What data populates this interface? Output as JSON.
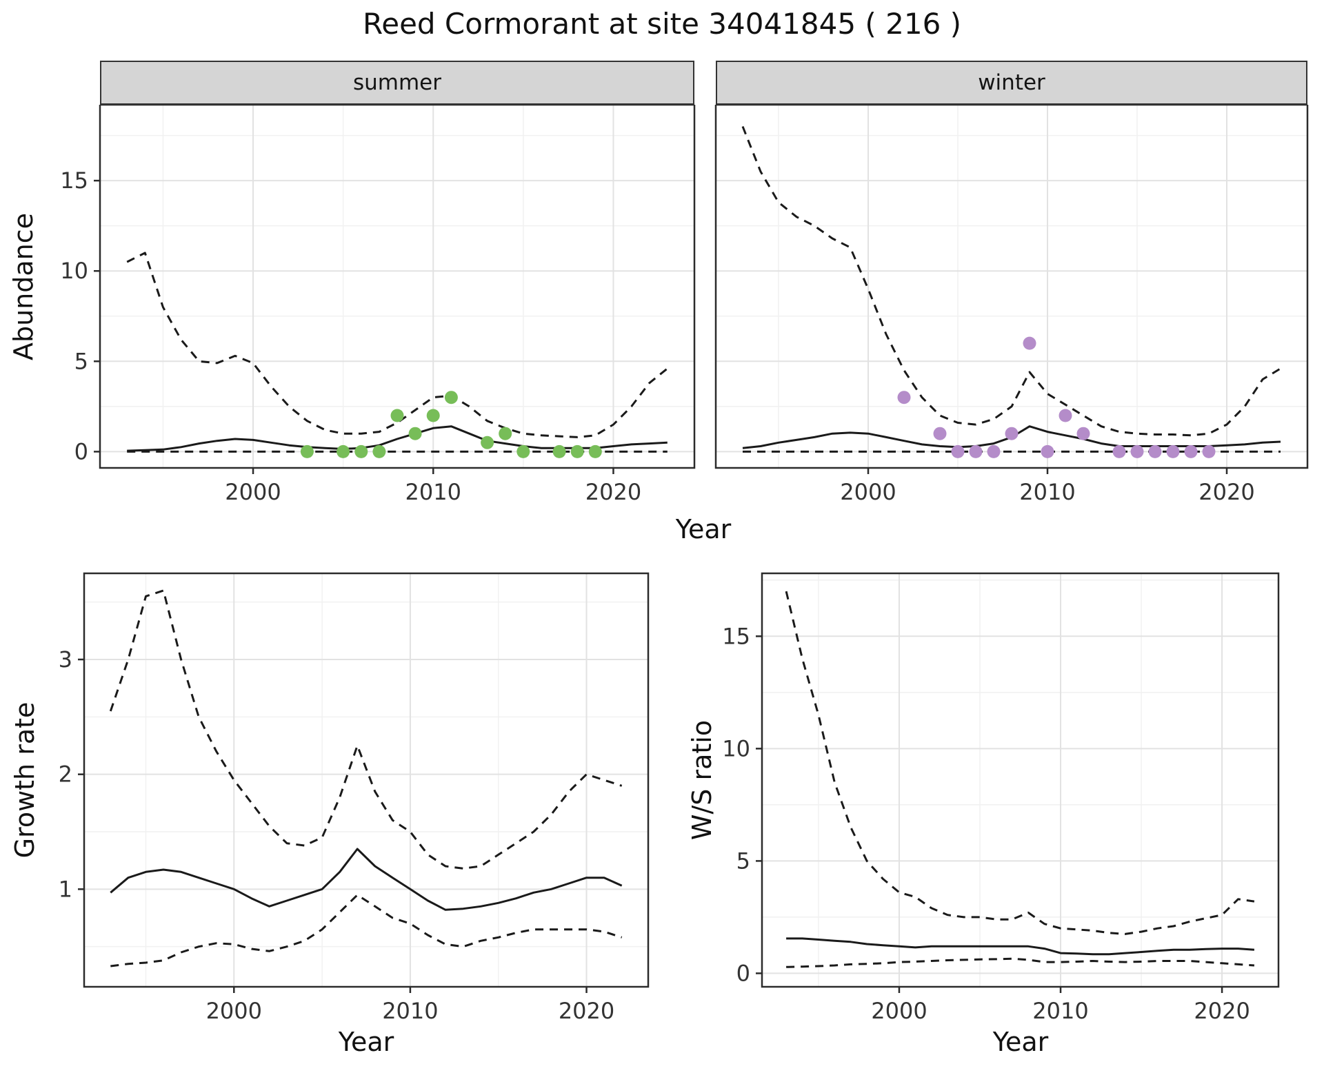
{
  "title": "Reed Cormorant at site 34041845 ( 216 )",
  "axes": {
    "abundance_label": "Abundance",
    "year_label_top": "Year",
    "year_label_growth": "Year",
    "year_label_ratio": "Year",
    "growth_label": "Growth rate",
    "ratio_label": "W/S ratio"
  },
  "colors": {
    "line": "#1a1a1a",
    "grid_major": "#e2e2e2",
    "grid_minor": "#f1f1f1",
    "panel_border": "#2b2b2b",
    "strip_bg": "#d5d5d5",
    "summer_points": "#77bd58",
    "winter_points": "#b48cc9"
  },
  "chart_data": [
    {
      "id": "abundance_summer",
      "type": "line",
      "facet": "summer",
      "xlabel": "Year",
      "ylabel": "Abundance",
      "xlim": [
        1991.5,
        2024.5
      ],
      "ylim": [
        -0.9,
        19.2
      ],
      "xticks": [
        2000,
        2010,
        2020
      ],
      "xticks_minor": [
        1995,
        2005,
        2015
      ],
      "yticks": [
        0,
        5,
        10,
        15
      ],
      "yticks_minor": [
        2.5,
        7.5,
        12.5,
        17.5
      ],
      "series": [
        {
          "name": "upper_ci",
          "style": "dashed",
          "x": [
            1993,
            1994,
            1995,
            1996,
            1997,
            1998,
            1999,
            2000,
            2001,
            2002,
            2003,
            2004,
            2005,
            2006,
            2007,
            2008,
            2009,
            2010,
            2011,
            2012,
            2013,
            2014,
            2015,
            2016,
            2017,
            2018,
            2019,
            2020,
            2021,
            2022,
            2023
          ],
          "y": [
            10.5,
            11,
            8,
            6.2,
            5,
            4.9,
            5.3,
            4.9,
            3.6,
            2.5,
            1.7,
            1.2,
            1,
            1,
            1.1,
            1.6,
            2.3,
            3,
            3.1,
            2.5,
            1.7,
            1.3,
            1,
            0.9,
            0.85,
            0.8,
            0.9,
            1.5,
            2.5,
            3.8,
            4.6
          ]
        },
        {
          "name": "mean",
          "style": "solid",
          "x": [
            1993,
            1994,
            1995,
            1996,
            1997,
            1998,
            1999,
            2000,
            2001,
            2002,
            2003,
            2004,
            2005,
            2006,
            2007,
            2008,
            2009,
            2010,
            2011,
            2012,
            2013,
            2014,
            2015,
            2016,
            2017,
            2018,
            2019,
            2020,
            2021,
            2022,
            2023
          ],
          "y": [
            0.05,
            0.08,
            0.12,
            0.25,
            0.45,
            0.6,
            0.7,
            0.65,
            0.5,
            0.35,
            0.25,
            0.2,
            0.15,
            0.2,
            0.35,
            0.7,
            1,
            1.3,
            1.4,
            1,
            0.6,
            0.45,
            0.3,
            0.2,
            0.2,
            0.2,
            0.2,
            0.3,
            0.4,
            0.45,
            0.5
          ]
        },
        {
          "name": "lower_ci",
          "style": "dashed",
          "x": [
            1993,
            1994,
            1995,
            1996,
            1997,
            1998,
            1999,
            2000,
            2001,
            2002,
            2003,
            2004,
            2005,
            2006,
            2007,
            2008,
            2009,
            2010,
            2011,
            2012,
            2013,
            2014,
            2015,
            2016,
            2017,
            2018,
            2019,
            2020,
            2021,
            2022,
            2023
          ],
          "y": [
            0,
            0,
            0,
            0,
            0,
            0,
            0,
            0,
            0,
            0,
            0,
            0,
            0,
            0,
            0,
            0,
            0,
            0,
            0,
            0,
            0,
            0,
            0,
            0,
            0,
            0,
            0,
            0,
            0,
            0,
            0
          ]
        }
      ],
      "points": {
        "name": "observed_counts_summer",
        "color": "#77bd58",
        "x": [
          2003,
          2005,
          2006,
          2007,
          2008,
          2009,
          2010,
          2011,
          2013,
          2014,
          2015,
          2017,
          2018,
          2019
        ],
        "y": [
          0,
          0,
          0,
          0,
          2,
          1,
          2,
          3,
          0.5,
          1,
          0,
          0,
          0,
          0
        ]
      }
    },
    {
      "id": "abundance_winter",
      "type": "line",
      "facet": "winter",
      "xlabel": "Year",
      "ylabel": "Abundance",
      "xlim": [
        1991.5,
        2024.5
      ],
      "ylim": [
        -0.9,
        19.2
      ],
      "xticks": [
        2000,
        2010,
        2020
      ],
      "xticks_minor": [
        1995,
        2005,
        2015
      ],
      "yticks": [
        0,
        5,
        10,
        15
      ],
      "yticks_minor": [
        2.5,
        7.5,
        12.5,
        17.5
      ],
      "series": [
        {
          "name": "upper_ci",
          "style": "dashed",
          "x": [
            1993,
            1994,
            1995,
            1996,
            1997,
            1998,
            1999,
            2000,
            2001,
            2002,
            2003,
            2004,
            2005,
            2006,
            2007,
            2008,
            2009,
            2010,
            2011,
            2012,
            2013,
            2014,
            2015,
            2016,
            2017,
            2018,
            2019,
            2020,
            2021,
            2022,
            2023
          ],
          "y": [
            18,
            15.5,
            13.8,
            13,
            12.5,
            11.8,
            11.3,
            9,
            6.5,
            4.5,
            3,
            2,
            1.6,
            1.5,
            1.8,
            2.5,
            4.4,
            3.2,
            2.6,
            2,
            1.4,
            1.1,
            1,
            0.95,
            0.95,
            0.9,
            1,
            1.5,
            2.5,
            4,
            4.6
          ]
        },
        {
          "name": "mean",
          "style": "solid",
          "x": [
            1993,
            1994,
            1995,
            1996,
            1997,
            1998,
            1999,
            2000,
            2001,
            2002,
            2003,
            2004,
            2005,
            2006,
            2007,
            2008,
            2009,
            2010,
            2011,
            2012,
            2013,
            2014,
            2015,
            2016,
            2017,
            2018,
            2019,
            2020,
            2021,
            2022,
            2023
          ],
          "y": [
            0.2,
            0.3,
            0.5,
            0.65,
            0.8,
            1,
            1.05,
            1,
            0.8,
            0.6,
            0.4,
            0.3,
            0.25,
            0.3,
            0.45,
            0.8,
            1.4,
            1.1,
            0.9,
            0.7,
            0.45,
            0.3,
            0.3,
            0.3,
            0.3,
            0.3,
            0.3,
            0.35,
            0.4,
            0.5,
            0.55
          ]
        },
        {
          "name": "lower_ci",
          "style": "dashed",
          "x": [
            1993,
            1994,
            1995,
            1996,
            1997,
            1998,
            1999,
            2000,
            2001,
            2002,
            2003,
            2004,
            2005,
            2006,
            2007,
            2008,
            2009,
            2010,
            2011,
            2012,
            2013,
            2014,
            2015,
            2016,
            2017,
            2018,
            2019,
            2020,
            2021,
            2022,
            2023
          ],
          "y": [
            0,
            0,
            0,
            0,
            0,
            0,
            0,
            0,
            0,
            0,
            0,
            0,
            0,
            0,
            0,
            0,
            0,
            0,
            0,
            0,
            0,
            0,
            0,
            0,
            0,
            0,
            0,
            0,
            0,
            0,
            0
          ]
        }
      ],
      "points": {
        "name": "observed_counts_winter",
        "color": "#b48cc9",
        "x": [
          2002,
          2004,
          2005,
          2006,
          2007,
          2008,
          2009,
          2010,
          2011,
          2012,
          2014,
          2015,
          2016,
          2017,
          2018,
          2019
        ],
        "y": [
          3,
          1,
          0,
          0,
          0,
          1,
          6,
          0,
          2,
          1,
          0,
          0,
          0,
          0,
          0,
          0
        ]
      }
    },
    {
      "id": "growth_rate",
      "type": "line",
      "facet": "",
      "xlabel": "Year",
      "ylabel": "Growth rate",
      "xlim": [
        1991.5,
        2023.5
      ],
      "ylim": [
        0.15,
        3.75
      ],
      "xticks": [
        2000,
        2010,
        2020
      ],
      "xticks_minor": [
        1995,
        2005,
        2015
      ],
      "yticks": [
        1,
        2,
        3
      ],
      "yticks_minor": [
        0.5,
        1.5,
        2.5,
        3.5
      ],
      "series": [
        {
          "name": "upper_ci",
          "style": "dashed",
          "x": [
            1993,
            1994,
            1995,
            1996,
            1997,
            1998,
            1999,
            2000,
            2001,
            2002,
            2003,
            2004,
            2005,
            2006,
            2007,
            2008,
            2009,
            2010,
            2011,
            2012,
            2013,
            2014,
            2015,
            2016,
            2017,
            2018,
            2019,
            2020,
            2021,
            2022
          ],
          "y": [
            2.55,
            3,
            3.55,
            3.6,
            3,
            2.5,
            2.2,
            1.95,
            1.75,
            1.55,
            1.4,
            1.38,
            1.45,
            1.8,
            2.25,
            1.85,
            1.6,
            1.5,
            1.3,
            1.2,
            1.18,
            1.2,
            1.3,
            1.4,
            1.5,
            1.65,
            1.85,
            2,
            1.95,
            1.9
          ]
        },
        {
          "name": "mean",
          "style": "solid",
          "x": [
            1993,
            1994,
            1995,
            1996,
            1997,
            1998,
            1999,
            2000,
            2001,
            2002,
            2003,
            2004,
            2005,
            2006,
            2007,
            2008,
            2009,
            2010,
            2011,
            2012,
            2013,
            2014,
            2015,
            2016,
            2017,
            2018,
            2019,
            2020,
            2021,
            2022
          ],
          "y": [
            0.97,
            1.1,
            1.15,
            1.17,
            1.15,
            1.1,
            1.05,
            1,
            0.92,
            0.85,
            0.9,
            0.95,
            1,
            1.15,
            1.35,
            1.2,
            1.1,
            1,
            0.9,
            0.82,
            0.83,
            0.85,
            0.88,
            0.92,
            0.97,
            1,
            1.05,
            1.1,
            1.1,
            1.03
          ]
        },
        {
          "name": "lower_ci",
          "style": "dashed",
          "x": [
            1993,
            1994,
            1995,
            1996,
            1997,
            1998,
            1999,
            2000,
            2001,
            2002,
            2003,
            2004,
            2005,
            2006,
            2007,
            2008,
            2009,
            2010,
            2011,
            2012,
            2013,
            2014,
            2015,
            2016,
            2017,
            2018,
            2019,
            2020,
            2021,
            2022
          ],
          "y": [
            0.33,
            0.35,
            0.36,
            0.38,
            0.45,
            0.5,
            0.53,
            0.52,
            0.48,
            0.46,
            0.5,
            0.55,
            0.65,
            0.8,
            0.95,
            0.85,
            0.75,
            0.7,
            0.6,
            0.52,
            0.5,
            0.55,
            0.58,
            0.62,
            0.65,
            0.65,
            0.65,
            0.65,
            0.63,
            0.58
          ]
        }
      ]
    },
    {
      "id": "ws_ratio",
      "type": "line",
      "facet": "",
      "xlabel": "Year",
      "ylabel": "W/S ratio",
      "xlim": [
        1991.5,
        2023.5
      ],
      "ylim": [
        -0.6,
        17.8
      ],
      "xticks": [
        2000,
        2010,
        2020
      ],
      "xticks_minor": [
        1995,
        2005,
        2015
      ],
      "yticks": [
        0,
        5,
        10,
        15
      ],
      "yticks_minor": [
        2.5,
        7.5,
        12.5,
        17.5
      ],
      "series": [
        {
          "name": "upper_ci",
          "style": "dashed",
          "x": [
            1993,
            1994,
            1995,
            1996,
            1997,
            1998,
            1999,
            2000,
            2001,
            2002,
            2003,
            2004,
            2005,
            2006,
            2007,
            2008,
            2009,
            2010,
            2011,
            2012,
            2013,
            2014,
            2015,
            2016,
            2017,
            2018,
            2019,
            2020,
            2021,
            2022
          ],
          "y": [
            17,
            14,
            11.5,
            8.5,
            6.5,
            5,
            4.2,
            3.6,
            3.4,
            2.9,
            2.6,
            2.5,
            2.5,
            2.4,
            2.4,
            2.7,
            2.2,
            2,
            1.95,
            1.9,
            1.8,
            1.75,
            1.85,
            2,
            2.1,
            2.3,
            2.45,
            2.6,
            3.3,
            3.2
          ]
        },
        {
          "name": "mean",
          "style": "solid",
          "x": [
            1993,
            1994,
            1995,
            1996,
            1997,
            1998,
            1999,
            2000,
            2001,
            2002,
            2003,
            2004,
            2005,
            2006,
            2007,
            2008,
            2009,
            2010,
            2011,
            2012,
            2013,
            2014,
            2015,
            2016,
            2017,
            2018,
            2019,
            2020,
            2021,
            2022
          ],
          "y": [
            1.55,
            1.55,
            1.5,
            1.45,
            1.4,
            1.3,
            1.25,
            1.2,
            1.15,
            1.2,
            1.2,
            1.2,
            1.2,
            1.2,
            1.2,
            1.2,
            1.1,
            0.9,
            0.88,
            0.85,
            0.85,
            0.9,
            0.95,
            1,
            1.05,
            1.05,
            1.08,
            1.1,
            1.1,
            1.05
          ]
        },
        {
          "name": "lower_ci",
          "style": "dashed",
          "x": [
            1993,
            1994,
            1995,
            1996,
            1997,
            1998,
            1999,
            2000,
            2001,
            2002,
            2003,
            2004,
            2005,
            2006,
            2007,
            2008,
            2009,
            2010,
            2011,
            2012,
            2013,
            2014,
            2015,
            2016,
            2017,
            2018,
            2019,
            2020,
            2021,
            2022
          ],
          "y": [
            0.28,
            0.3,
            0.32,
            0.35,
            0.4,
            0.42,
            0.45,
            0.5,
            0.52,
            0.55,
            0.58,
            0.6,
            0.62,
            0.63,
            0.65,
            0.6,
            0.5,
            0.5,
            0.52,
            0.55,
            0.52,
            0.5,
            0.52,
            0.55,
            0.55,
            0.55,
            0.5,
            0.45,
            0.4,
            0.35
          ]
        }
      ]
    }
  ]
}
